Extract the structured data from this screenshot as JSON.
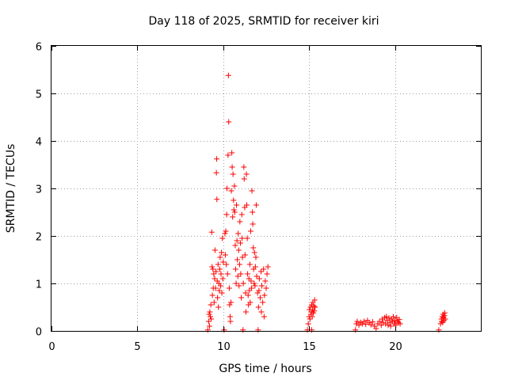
{
  "chart_data": {
    "type": "scatter",
    "title": "Day 118 of 2025, SRMTID for receiver kiri",
    "xlabel": "GPS time / hours",
    "ylabel": "SRMTID / TECUs",
    "xlim": [
      0,
      25
    ],
    "ylim": [
      0,
      6
    ],
    "xticks": [
      0,
      5,
      10,
      15,
      20
    ],
    "yticks": [
      0,
      1,
      2,
      3,
      4,
      5,
      6
    ],
    "xtick_labels": [
      "0",
      "5",
      "10",
      "15",
      "20"
    ],
    "ytick_labels": [
      "0",
      "1",
      "2",
      "3",
      "4",
      "5",
      "6"
    ],
    "grid": true,
    "marker": "plus",
    "color": "#ff0000",
    "series": [
      {
        "name": "SRMTID",
        "points": [
          [
            9.1,
            0.02
          ],
          [
            9.15,
            0.2
          ],
          [
            9.18,
            0.35
          ],
          [
            9.2,
            0.1
          ],
          [
            9.22,
            0.4
          ],
          [
            9.25,
            0.3
          ],
          [
            9.28,
            0.55
          ],
          [
            9.3,
            0.25
          ],
          [
            9.33,
            2.08
          ],
          [
            9.35,
            1.35
          ],
          [
            9.37,
            0.75
          ],
          [
            9.4,
            1.3
          ],
          [
            9.42,
            0.9
          ],
          [
            9.45,
            1.2
          ],
          [
            9.47,
            0.6
          ],
          [
            9.5,
            1.1
          ],
          [
            9.52,
            1.7
          ],
          [
            9.55,
            0.9
          ],
          [
            9.58,
            1.25
          ],
          [
            9.6,
            3.33
          ],
          [
            9.62,
            3.62
          ],
          [
            9.63,
            2.77
          ],
          [
            9.65,
            1.05
          ],
          [
            9.67,
            0.7
          ],
          [
            9.7,
            1.4
          ],
          [
            9.72,
            0.5
          ],
          [
            9.75,
            1.0
          ],
          [
            9.77,
            0.85
          ],
          [
            9.8,
            1.3
          ],
          [
            9.82,
            1.55
          ],
          [
            9.85,
            0.95
          ],
          [
            9.87,
            1.2
          ],
          [
            9.9,
            1.65
          ],
          [
            9.92,
            0.8
          ],
          [
            9.95,
            1.95
          ],
          [
            9.97,
            1.1
          ],
          [
            10.0,
            1.45
          ],
          [
            10.05,
            0.02
          ],
          [
            10.1,
            2.05
          ],
          [
            10.12,
            1.6
          ],
          [
            10.15,
            2.1
          ],
          [
            10.18,
            1.4
          ],
          [
            10.2,
            2.45
          ],
          [
            10.22,
            3.0
          ],
          [
            10.25,
            1.2
          ],
          [
            10.28,
            3.7
          ],
          [
            10.3,
            5.38
          ],
          [
            10.32,
            4.4
          ],
          [
            10.35,
            0.9
          ],
          [
            10.37,
            0.55
          ],
          [
            10.4,
            0.3
          ],
          [
            10.42,
            0.2
          ],
          [
            10.45,
            0.6
          ],
          [
            10.47,
            2.95
          ],
          [
            10.5,
            3.75
          ],
          [
            10.52,
            3.45
          ],
          [
            10.55,
            2.4
          ],
          [
            10.57,
            3.3
          ],
          [
            10.6,
            2.75
          ],
          [
            10.62,
            2.55
          ],
          [
            10.65,
            3.05
          ],
          [
            10.67,
            2.5
          ],
          [
            10.7,
            1.8
          ],
          [
            10.72,
            1.3
          ],
          [
            10.75,
            1.0
          ],
          [
            10.77,
            2.65
          ],
          [
            10.8,
            1.9
          ],
          [
            10.82,
            1.5
          ],
          [
            10.85,
            1.15
          ],
          [
            10.87,
            2.05
          ],
          [
            10.9,
            1.7
          ],
          [
            10.92,
            0.95
          ],
          [
            10.95,
            1.4
          ],
          [
            10.97,
            2.3
          ],
          [
            11.0,
            1.85
          ],
          [
            11.02,
            1.2
          ],
          [
            11.05,
            0.7
          ],
          [
            11.08,
            2.45
          ],
          [
            11.1,
            1.95
          ],
          [
            11.12,
            1.55
          ],
          [
            11.15,
            0.02
          ],
          [
            11.17,
            1.0
          ],
          [
            11.2,
            3.45
          ],
          [
            11.22,
            3.2
          ],
          [
            11.25,
            2.6
          ],
          [
            11.27,
            1.6
          ],
          [
            11.3,
            0.8
          ],
          [
            11.32,
            0.4
          ],
          [
            11.35,
            3.3
          ],
          [
            11.37,
            2.65
          ],
          [
            11.4,
            1.95
          ],
          [
            11.42,
            1.2
          ],
          [
            11.45,
            0.75
          ],
          [
            11.47,
            0.55
          ],
          [
            11.5,
            1.1
          ],
          [
            11.52,
            0.85
          ],
          [
            11.55,
            1.4
          ],
          [
            11.57,
            0.6
          ],
          [
            11.6,
            2.1
          ],
          [
            11.62,
            1.05
          ],
          [
            11.65,
            0.9
          ],
          [
            11.67,
            2.95
          ],
          [
            11.7,
            2.5
          ],
          [
            11.72,
            2.25
          ],
          [
            11.75,
            1.75
          ],
          [
            11.77,
            1.3
          ],
          [
            11.8,
            1.0
          ],
          [
            11.82,
            1.65
          ],
          [
            11.85,
            0.95
          ],
          [
            11.87,
            1.35
          ],
          [
            11.9,
            1.55
          ],
          [
            11.92,
            2.65
          ],
          [
            11.95,
            1.15
          ],
          [
            12.0,
            0.8
          ],
          [
            12.03,
            0.02
          ],
          [
            12.05,
            0.5
          ],
          [
            12.08,
            0.85
          ],
          [
            12.1,
            1.1
          ],
          [
            12.15,
            0.7
          ],
          [
            12.2,
            1.25
          ],
          [
            12.22,
            0.4
          ],
          [
            12.25,
            0.95
          ],
          [
            12.3,
            0.6
          ],
          [
            12.35,
            1.3
          ],
          [
            12.38,
            0.3
          ],
          [
            12.4,
            0.75
          ],
          [
            12.45,
            1.05
          ],
          [
            12.5,
            0.9
          ],
          [
            12.55,
            1.2
          ],
          [
            12.6,
            1.35
          ],
          [
            14.9,
            0.02
          ],
          [
            14.95,
            0.15
          ],
          [
            15.0,
            0.3
          ],
          [
            15.02,
            0.45
          ],
          [
            15.05,
            0.25
          ],
          [
            15.08,
            0.5
          ],
          [
            15.1,
            0.35
          ],
          [
            15.12,
            0.4
          ],
          [
            15.15,
            0.55
          ],
          [
            15.18,
            0.3
          ],
          [
            15.2,
            0.45
          ],
          [
            15.22,
            0.6
          ],
          [
            15.25,
            0.38
          ],
          [
            15.28,
            0.52
          ],
          [
            15.3,
            0.42
          ],
          [
            15.32,
            0.65
          ],
          [
            15.35,
            0.5
          ],
          [
            15.15,
            0.02
          ],
          [
            17.7,
            0.02
          ],
          [
            17.75,
            0.15
          ],
          [
            17.8,
            0.2
          ],
          [
            17.9,
            0.12
          ],
          [
            18.0,
            0.18
          ],
          [
            18.1,
            0.15
          ],
          [
            18.2,
            0.2
          ],
          [
            18.3,
            0.14
          ],
          [
            18.4,
            0.22
          ],
          [
            18.5,
            0.17
          ],
          [
            18.6,
            0.13
          ],
          [
            18.7,
            0.19
          ],
          [
            18.8,
            0.1
          ],
          [
            18.9,
            0.05
          ],
          [
            19.0,
            0.15
          ],
          [
            19.1,
            0.2
          ],
          [
            19.2,
            0.12
          ],
          [
            19.25,
            0.25
          ],
          [
            19.3,
            0.18
          ],
          [
            19.4,
            0.28
          ],
          [
            19.45,
            0.15
          ],
          [
            19.5,
            0.3
          ],
          [
            19.55,
            0.22
          ],
          [
            19.6,
            0.12
          ],
          [
            19.65,
            0.27
          ],
          [
            19.7,
            0.18
          ],
          [
            19.75,
            0.1
          ],
          [
            19.8,
            0.25
          ],
          [
            19.85,
            0.2
          ],
          [
            19.9,
            0.3
          ],
          [
            19.95,
            0.15
          ],
          [
            20.0,
            0.22
          ],
          [
            20.05,
            0.12
          ],
          [
            20.1,
            0.28
          ],
          [
            20.15,
            0.2
          ],
          [
            20.2,
            0.17
          ],
          [
            20.25,
            0.24
          ],
          [
            20.3,
            0.15
          ],
          [
            22.55,
            0.02
          ],
          [
            22.65,
            0.15
          ],
          [
            22.7,
            0.25
          ],
          [
            22.72,
            0.2
          ],
          [
            22.75,
            0.3
          ],
          [
            22.78,
            0.18
          ],
          [
            22.8,
            0.35
          ],
          [
            22.82,
            0.28
          ],
          [
            22.85,
            0.22
          ],
          [
            22.88,
            0.32
          ],
          [
            22.9,
            0.38
          ],
          [
            22.93,
            0.25
          ]
        ]
      }
    ]
  }
}
